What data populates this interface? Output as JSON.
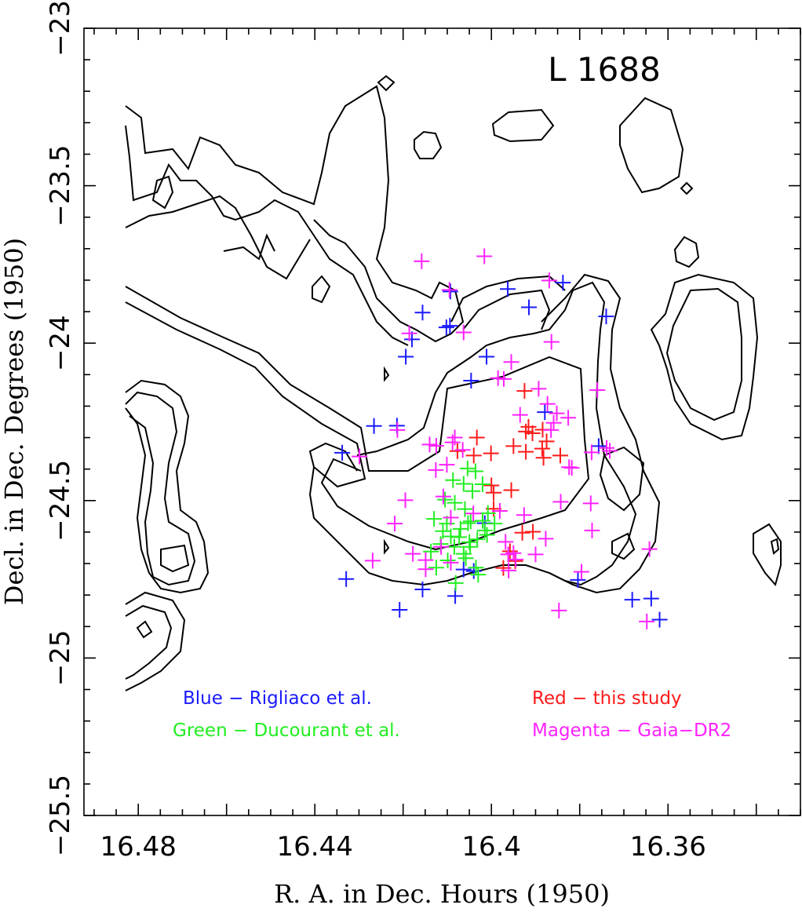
{
  "chart_data": {
    "type": "scatter",
    "title": "L 1688",
    "xlabel": "R. A. in Dec. Hours (1950)",
    "ylabel": "Decl. in Dec. Degrees (1950)",
    "xlim": [
      16.4923,
      16.33
    ],
    "ylim": [
      -25.5,
      -23.0
    ],
    "x_ticks": [
      16.48,
      16.44,
      16.4,
      16.36
    ],
    "x_tick_labels": [
      "16.48",
      "16.44",
      "16.4",
      "16.36"
    ],
    "y_ticks": [
      -23,
      -23.5,
      -24,
      -24.5,
      -25,
      -25.5
    ],
    "y_tick_labels": [
      "−23",
      "−23.5",
      "−24",
      "−24.5",
      "−25",
      "−25.5"
    ],
    "grid": false,
    "marker": "plus",
    "colors": {
      "blue": "#1a1aff",
      "green": "#22ee22",
      "red": "#ff1a1a",
      "magenta": "#ff22ff",
      "contour": "#000000"
    },
    "legend": [
      {
        "text": "Blue − Rigliaco et al.",
        "color": "#1a1aff"
      },
      {
        "text": "Red − this study",
        "color": "#ff1a1a"
      },
      {
        "text": "Green − Ducourant et al.",
        "color": "#22ee22"
      },
      {
        "text": "Magenta − Gaia−DR2",
        "color": "#ff22ff"
      }
    ],
    "series": [
      {
        "color": "#1a1aff",
        "points": [
          [
            16.4194,
            -24.043
          ],
          [
            16.418,
            -23.988
          ],
          [
            16.4156,
            -23.903
          ],
          [
            16.4093,
            -23.836
          ],
          [
            16.4102,
            -23.95
          ],
          [
            16.4094,
            -23.945
          ],
          [
            16.3963,
            -23.828
          ],
          [
            16.3915,
            -23.886
          ],
          [
            16.3838,
            -23.808
          ],
          [
            16.374,
            -23.915
          ],
          [
            16.4011,
            -24.043
          ],
          [
            16.4046,
            -24.119
          ],
          [
            16.4266,
            -24.263
          ],
          [
            16.4214,
            -24.262
          ],
          [
            16.4338,
            -24.348
          ],
          [
            16.3879,
            -24.219
          ],
          [
            16.3757,
            -24.327
          ],
          [
            16.4015,
            -24.572
          ],
          [
            16.4063,
            -24.719
          ],
          [
            16.404,
            -24.724
          ],
          [
            16.4082,
            -24.803
          ],
          [
            16.4156,
            -24.782
          ],
          [
            16.4208,
            -24.847
          ],
          [
            16.4329,
            -24.749
          ],
          [
            16.3804,
            -24.752
          ],
          [
            16.3681,
            -24.815
          ],
          [
            16.3638,
            -24.811
          ],
          [
            16.3619,
            -24.878
          ]
        ]
      },
      {
        "color": "#ff1a1a",
        "points": [
          [
            16.3925,
            -24.152
          ],
          [
            16.3916,
            -24.266
          ],
          [
            16.3922,
            -24.281
          ],
          [
            16.3907,
            -24.286
          ],
          [
            16.3884,
            -24.275
          ],
          [
            16.3875,
            -24.312
          ],
          [
            16.3885,
            -24.335
          ],
          [
            16.3922,
            -24.345
          ],
          [
            16.395,
            -24.327
          ],
          [
            16.3882,
            -24.364
          ],
          [
            16.3844,
            -24.357
          ],
          [
            16.4033,
            -24.3
          ],
          [
            16.4077,
            -24.343
          ],
          [
            16.404,
            -24.357
          ],
          [
            16.4001,
            -24.35
          ],
          [
            16.4,
            -24.452
          ],
          [
            16.3995,
            -24.475
          ],
          [
            16.3955,
            -24.467
          ],
          [
            16.3995,
            -24.526
          ],
          [
            16.393,
            -24.602
          ],
          [
            16.3958,
            -24.661
          ],
          [
            16.3946,
            -24.692
          ],
          [
            16.3906,
            -24.599
          ],
          [
            16.3973,
            -24.714
          ]
        ]
      },
      {
        "color": "#22ee22",
        "points": [
          [
            16.413,
            -24.558
          ],
          [
            16.411,
            -24.597
          ],
          [
            16.4084,
            -24.647
          ],
          [
            16.4058,
            -24.683
          ],
          [
            16.4035,
            -24.713
          ],
          [
            16.402,
            -24.564
          ],
          [
            16.4015,
            -24.595
          ],
          [
            16.4032,
            -24.623
          ],
          [
            16.4048,
            -24.647
          ],
          [
            16.4063,
            -24.669
          ],
          [
            16.4099,
            -24.69
          ],
          [
            16.4125,
            -24.713
          ],
          [
            16.4137,
            -24.662
          ],
          [
            16.4115,
            -24.638
          ],
          [
            16.4092,
            -24.614
          ],
          [
            16.407,
            -24.59
          ],
          [
            16.4047,
            -24.566
          ],
          [
            16.406,
            -24.527
          ],
          [
            16.4083,
            -24.507
          ],
          [
            16.4105,
            -24.497
          ],
          [
            16.4087,
            -24.435
          ],
          [
            16.4063,
            -24.447
          ],
          [
            16.4043,
            -24.47
          ],
          [
            16.4054,
            -24.398
          ],
          [
            16.4036,
            -24.407
          ],
          [
            16.402,
            -24.448
          ],
          [
            16.4008,
            -24.54
          ],
          [
            16.3993,
            -24.573
          ],
          [
            16.4053,
            -24.572
          ],
          [
            16.401,
            -24.609
          ],
          [
            16.4081,
            -24.762
          ],
          [
            16.403,
            -24.735
          ],
          [
            16.405,
            -24.632
          ],
          [
            16.4073,
            -24.616
          ],
          [
            16.4101,
            -24.573
          ]
        ]
      },
      {
        "color": "#ff22ff",
        "points": [
          [
            16.4158,
            -23.74
          ],
          [
            16.4016,
            -23.724
          ],
          [
            16.3869,
            -23.801
          ],
          [
            16.4095,
            -23.831
          ],
          [
            16.4186,
            -23.969
          ],
          [
            16.4063,
            -23.966
          ],
          [
            16.3955,
            -24.06
          ],
          [
            16.3972,
            -24.114
          ],
          [
            16.3985,
            -24.111
          ],
          [
            16.3864,
            -23.996
          ],
          [
            16.3935,
            -24.228
          ],
          [
            16.3893,
            -24.145
          ],
          [
            16.3873,
            -24.193
          ],
          [
            16.3852,
            -24.223
          ],
          [
            16.3826,
            -24.237
          ],
          [
            16.376,
            -24.149
          ],
          [
            16.3859,
            -24.253
          ],
          [
            16.414,
            -24.322
          ],
          [
            16.4125,
            -24.326
          ],
          [
            16.4083,
            -24.3
          ],
          [
            16.4088,
            -24.315
          ],
          [
            16.4065,
            -24.339
          ],
          [
            16.4101,
            -24.386
          ],
          [
            16.4126,
            -24.403
          ],
          [
            16.4109,
            -24.487
          ],
          [
            16.4092,
            -24.554
          ],
          [
            16.4041,
            -24.541
          ],
          [
            16.4213,
            -24.276
          ],
          [
            16.4299,
            -24.36
          ],
          [
            16.4195,
            -24.499
          ],
          [
            16.4219,
            -24.573
          ],
          [
            16.4269,
            -24.691
          ],
          [
            16.4178,
            -24.669
          ],
          [
            16.4149,
            -24.689
          ],
          [
            16.4114,
            -24.647
          ],
          [
            16.4149,
            -24.718
          ],
          [
            16.4092,
            -24.697
          ],
          [
            16.3981,
            -24.533
          ],
          [
            16.3968,
            -24.631
          ],
          [
            16.3962,
            -24.671
          ],
          [
            16.395,
            -24.667
          ],
          [
            16.39,
            -24.671
          ],
          [
            16.3877,
            -24.621
          ],
          [
            16.3945,
            -24.687
          ],
          [
            16.3961,
            -24.722
          ],
          [
            16.3773,
            -24.347
          ],
          [
            16.3732,
            -24.342
          ],
          [
            16.3739,
            -24.333
          ],
          [
            16.3843,
            -24.504
          ],
          [
            16.3926,
            -24.546
          ],
          [
            16.3818,
            -24.396
          ],
          [
            16.3775,
            -24.509
          ],
          [
            16.3847,
            -24.849
          ],
          [
            16.3772,
            -24.595
          ],
          [
            16.3796,
            -24.726
          ],
          [
            16.3648,
            -24.884
          ],
          [
            16.3642,
            -24.654
          ],
          [
            16.3865,
            -24.276
          ],
          [
            16.3824,
            -24.394
          ]
        ]
      }
    ]
  }
}
